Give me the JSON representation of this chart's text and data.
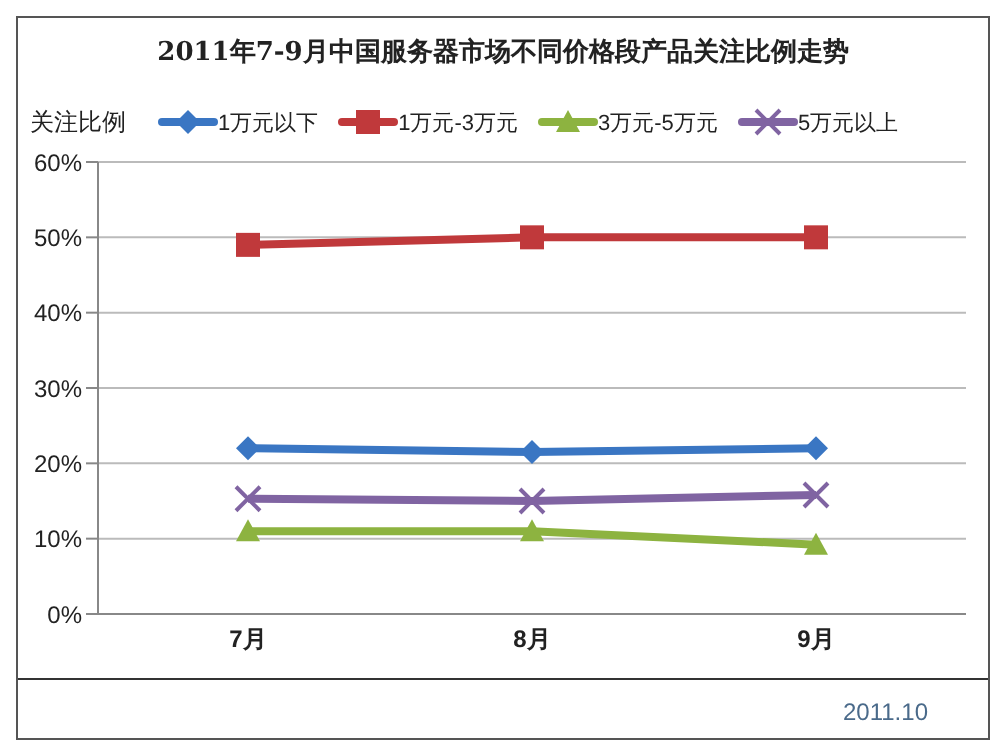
{
  "chart_data": {
    "type": "line",
    "title": "2011年7-9月中国服务器市场不同价格段产品关注比例走势",
    "ylabel": "关注比例",
    "categories": [
      "7月",
      "8月",
      "9月"
    ],
    "series": [
      {
        "name": "1万元以下",
        "color": "#3a76c3",
        "marker": "diamond",
        "values": [
          22,
          21.5,
          22
        ]
      },
      {
        "name": "1万元-3万元",
        "color": "#c0393b",
        "marker": "square",
        "values": [
          49,
          50,
          50
        ]
      },
      {
        "name": "3万元-5万元",
        "color": "#8db340",
        "marker": "triangle",
        "values": [
          11,
          11,
          9.2
        ]
      },
      {
        "name": "5万元以上",
        "color": "#8064a2",
        "marker": "cross",
        "values": [
          15.3,
          15,
          15.8
        ]
      }
    ],
    "ylim": [
      0,
      60
    ],
    "yticks": [
      {
        "value": 0,
        "label": "0%"
      },
      {
        "value": 10,
        "label": "10%"
      },
      {
        "value": 20,
        "label": "20%"
      },
      {
        "value": 30,
        "label": "30%"
      },
      {
        "value": 40,
        "label": "40%"
      },
      {
        "value": 50,
        "label": "50%"
      },
      {
        "value": 60,
        "label": "60%"
      }
    ],
    "grid": "y",
    "legend": "top",
    "line_style": "solid",
    "annotations": [
      "2011.10"
    ]
  }
}
